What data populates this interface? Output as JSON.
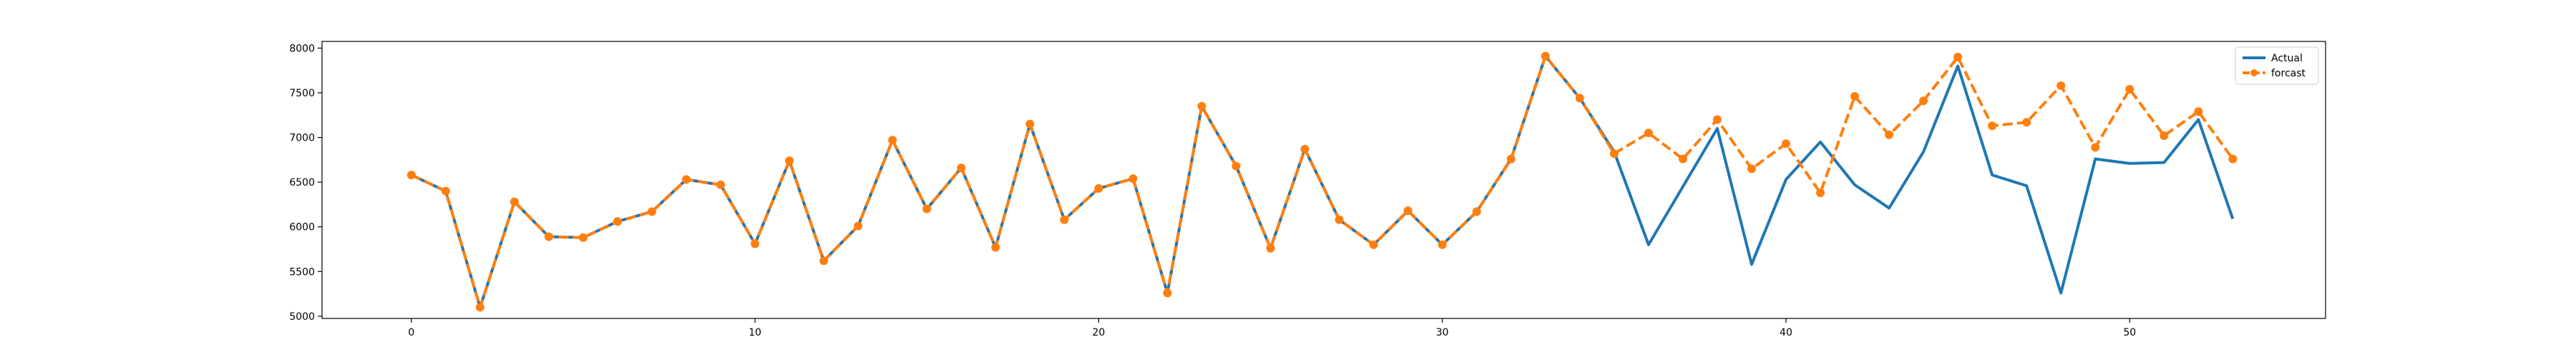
{
  "chart_data": {
    "type": "line",
    "title": "",
    "xlabel": "",
    "ylabel": "",
    "xlim": [
      -2.6,
      55.7
    ],
    "ylim": [
      4975,
      8075
    ],
    "xticks": [
      0,
      10,
      20,
      30,
      40,
      50
    ],
    "yticks": [
      5000,
      5500,
      6000,
      6500,
      7000,
      7500,
      8000
    ],
    "grid": false,
    "legend_position": "top-right",
    "series": [
      {
        "name": "Actual",
        "color": "#1f77b4",
        "style": "solid",
        "marker": "none",
        "x": [
          0,
          1,
          2,
          3,
          4,
          5,
          6,
          7,
          8,
          9,
          10,
          11,
          12,
          13,
          14,
          15,
          16,
          17,
          18,
          19,
          20,
          21,
          22,
          23,
          24,
          25,
          26,
          27,
          28,
          29,
          30,
          31,
          32,
          33,
          34,
          35,
          36,
          37,
          38,
          39,
          40,
          41,
          42,
          43,
          44,
          45,
          46,
          47,
          48,
          49,
          50,
          51,
          52,
          53
        ],
        "values": [
          6580,
          6400,
          5100,
          6280,
          5890,
          5880,
          6060,
          6170,
          6530,
          6470,
          5810,
          6740,
          5620,
          6010,
          6970,
          6200,
          6660,
          5770,
          7150,
          6080,
          6430,
          6540,
          5260,
          7350,
          6680,
          5760,
          6870,
          6080,
          5800,
          6180,
          5800,
          6170,
          6760,
          7910,
          7440,
          6840,
          5800,
          6450,
          7100,
          5580,
          6530,
          6950,
          6470,
          6210,
          6840,
          7800,
          6580,
          6460,
          5260,
          6760,
          6710,
          6720,
          7200,
          6090
        ]
      },
      {
        "name": "forcast",
        "color": "#ff7f0e",
        "style": "dashed",
        "marker": "circle",
        "x": [
          0,
          1,
          2,
          3,
          4,
          5,
          6,
          7,
          8,
          9,
          10,
          11,
          12,
          13,
          14,
          15,
          16,
          17,
          18,
          19,
          20,
          21,
          22,
          23,
          24,
          25,
          26,
          27,
          28,
          29,
          30,
          31,
          32,
          33,
          34,
          35,
          36,
          37,
          38,
          39,
          40,
          41,
          42,
          43,
          44,
          45,
          46,
          47,
          48,
          49,
          50,
          51,
          52,
          53
        ],
        "values": [
          6580,
          6400,
          5100,
          6280,
          5890,
          5880,
          6060,
          6170,
          6530,
          6470,
          5810,
          6740,
          5620,
          6010,
          6970,
          6200,
          6660,
          5770,
          7150,
          6080,
          6430,
          6540,
          5260,
          7350,
          6680,
          5760,
          6870,
          6080,
          5800,
          6180,
          5800,
          6170,
          6760,
          7910,
          7440,
          6820,
          7050,
          6760,
          7200,
          6650,
          6930,
          6380,
          7460,
          7030,
          7410,
          7900,
          7130,
          7170,
          7580,
          6890,
          7540,
          7020,
          7290,
          6760
        ]
      }
    ]
  }
}
